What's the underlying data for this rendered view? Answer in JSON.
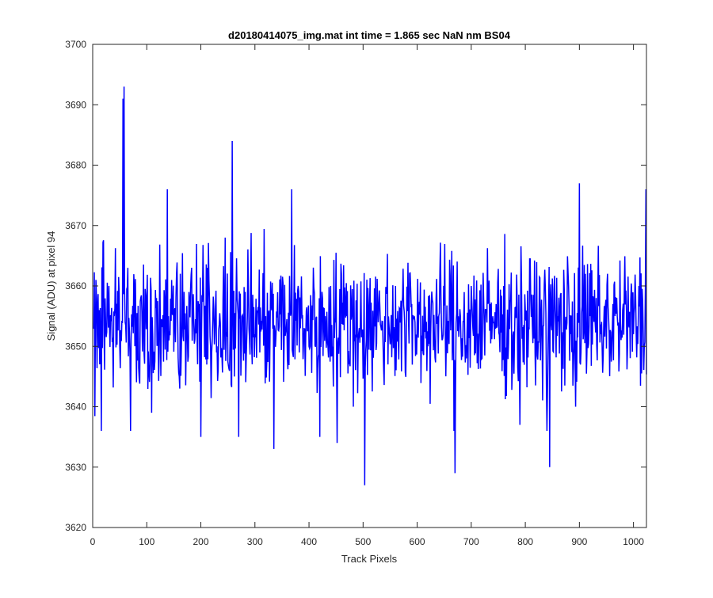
{
  "chart_data": {
    "type": "line",
    "title": "d20180414075_img.mat int time = 1.865 sec  NaN nm BS04",
    "xlabel": "Track Pixels",
    "ylabel": "Signal (ADU) at pixel 94",
    "xlim": [
      0,
      1024
    ],
    "ylim": [
      3620,
      3700
    ],
    "xticks": [
      0,
      100,
      200,
      300,
      400,
      500,
      600,
      700,
      800,
      900,
      1000
    ],
    "yticks": [
      3620,
      3630,
      3640,
      3650,
      3660,
      3670,
      3680,
      3690,
      3700
    ],
    "grid": false,
    "legend": "none",
    "series": [
      {
        "color": "#0000ff",
        "point_count": 1024,
        "baseline": 3654,
        "noise_amplitude": 7,
        "x": [
          1,
          6,
          12,
          16,
          21,
          30,
          40,
          50,
          56,
          58,
          60,
          65,
          70,
          80,
          100,
          109,
          125,
          138,
          140,
          155,
          175,
          200,
          206,
          230,
          245,
          258,
          262,
          270,
          276,
          292,
          300,
          320,
          335,
          350,
          360,
          368,
          380,
          400,
          420,
          430,
          440,
          452,
          460,
          470,
          482,
          503,
          510,
          520,
          540,
          560,
          580,
          600,
          620,
          640,
          668,
          670,
          680,
          700,
          720,
          740,
          760,
          790,
          800,
          820,
          840,
          845,
          860,
          880,
          893,
          900,
          920,
          940,
          960,
          980,
          1000,
          1010,
          1020,
          1023
        ],
        "values": [
          3653,
          3661,
          3656,
          3636,
          3652,
          3660,
          3655,
          3650,
          3691,
          3693,
          3654,
          3663,
          3636,
          3652,
          3658,
          3639,
          3654,
          3676,
          3655,
          3662,
          3652,
          3635,
          3655,
          3650,
          3668,
          3684,
          3645,
          3635,
          3655,
          3660,
          3652,
          3655,
          3633,
          3658,
          3648,
          3676,
          3660,
          3650,
          3635,
          3655,
          3660,
          3634,
          3662,
          3655,
          3640,
          3627,
          3656,
          3652,
          3655,
          3660,
          3652,
          3654,
          3650,
          3655,
          3636,
          3629,
          3655,
          3660,
          3648,
          3655,
          3660,
          3637,
          3656,
          3652,
          3636,
          3630,
          3655,
          3660,
          3640,
          3677,
          3655,
          3652,
          3650,
          3656,
          3652,
          3660,
          3650,
          3676
        ]
      }
    ]
  }
}
